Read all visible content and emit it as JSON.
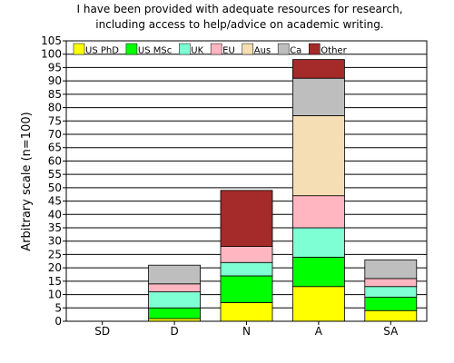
{
  "chart_data": {
    "type": "bar",
    "stacked": true,
    "title_lines": [
      "I have been provided with adequate resources for research,",
      "including access to help/advice on academic writing."
    ],
    "xlabel": "",
    "ylabel": "Arbitrary scale (n=100)",
    "ylim": [
      0,
      105
    ],
    "yticks": [
      0,
      5,
      10,
      15,
      20,
      25,
      30,
      35,
      40,
      45,
      50,
      55,
      60,
      65,
      70,
      75,
      80,
      85,
      90,
      95,
      100,
      105
    ],
    "grid": "horizontal",
    "legend_position": "top",
    "categories": [
      "SD",
      "D",
      "N",
      "A",
      "SA"
    ],
    "series": [
      {
        "name": "US PhD",
        "color": "#ffff00",
        "values": [
          0,
          1,
          7,
          13,
          4
        ]
      },
      {
        "name": "US MSc",
        "color": "#00ff00",
        "values": [
          0,
          4,
          10,
          11,
          5
        ]
      },
      {
        "name": "UK",
        "color": "#7fffd4",
        "values": [
          0,
          6,
          5,
          11,
          4
        ]
      },
      {
        "name": "EU",
        "color": "#ffb6c1",
        "values": [
          0,
          3,
          6,
          12,
          3
        ]
      },
      {
        "name": "Aus",
        "color": "#f5deb3",
        "values": [
          0,
          0,
          0,
          30,
          0
        ]
      },
      {
        "name": "Ca",
        "color": "#bebebe",
        "values": [
          0,
          7,
          0,
          14,
          7
        ]
      },
      {
        "name": "Other",
        "color": "#a52a2a",
        "values": [
          0,
          0,
          21,
          7,
          0
        ]
      }
    ]
  }
}
